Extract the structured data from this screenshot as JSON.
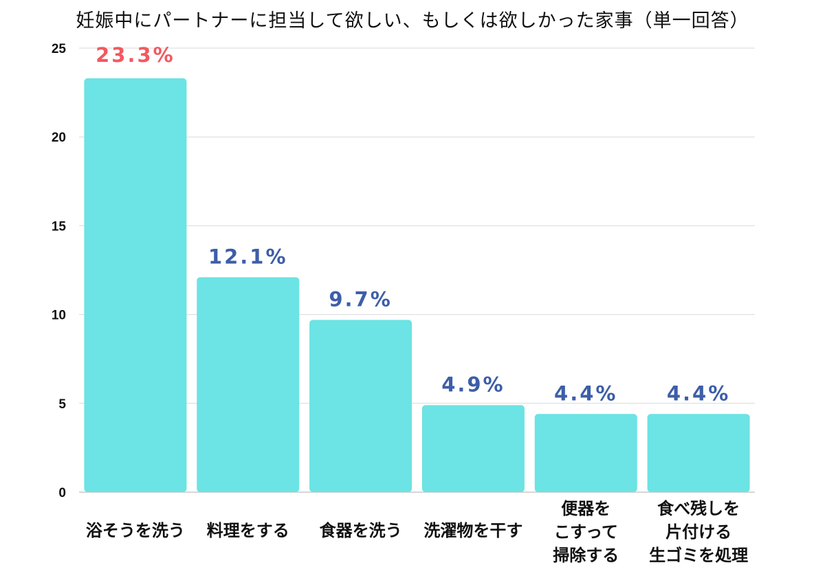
{
  "chart_data": {
    "type": "bar",
    "title": "妊娠中にパートナーに担当して欲しい、もしくは欲しかった家事（単一回答）",
    "categories": [
      [
        "浴そうを洗う"
      ],
      [
        "料理をする"
      ],
      [
        "食器を洗う"
      ],
      [
        "洗濯物を干す"
      ],
      [
        "便器を",
        "こすって",
        "掃除する"
      ],
      [
        "食べ残しを",
        "片付ける",
        "生ゴミを処理"
      ]
    ],
    "values": [
      23.3,
      12.1,
      9.7,
      4.9,
      4.4,
      4.4
    ],
    "data_labels": [
      "23.3%",
      "12.1%",
      "9.7%",
      "4.9%",
      "4.4%",
      "4.4%"
    ],
    "highlight_index": 0,
    "ylim": [
      0,
      25
    ],
    "yticks": [
      0,
      5,
      10,
      15,
      20,
      25
    ],
    "xlabel": "",
    "ylabel": "",
    "grid": true,
    "legend": "none",
    "colors": {
      "bar": "#6ce3e4",
      "label": "#3d5ea8",
      "highlight_label": "#f2595f",
      "grid": "#d9d9d9",
      "axis": "#c8c8c8"
    }
  }
}
